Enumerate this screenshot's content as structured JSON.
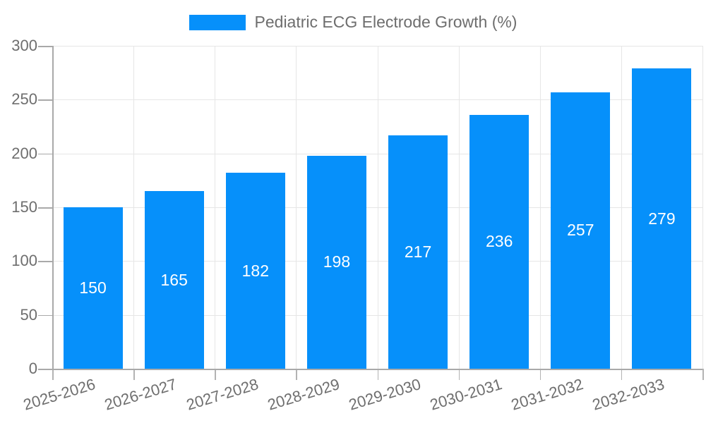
{
  "legend": {
    "label": "Pediatric ECG Electrode Growth (%)",
    "position": "top"
  },
  "chart_data": {
    "type": "bar",
    "title": "Pediatric ECG Electrode Growth (%)",
    "categories": [
      "2025-2026",
      "2026-2027",
      "2027-2028",
      "2028-2029",
      "2029-2030",
      "2030-2031",
      "2031-2032",
      "2032-2033"
    ],
    "values": [
      150,
      165,
      182,
      198,
      217,
      236,
      257,
      279
    ],
    "xlabel": "",
    "ylabel": "",
    "ylim": [
      0,
      300
    ],
    "yticks": [
      0,
      50,
      100,
      150,
      200,
      250,
      300
    ],
    "grid": true,
    "legend_position": "top",
    "value_labels": "inside-center",
    "x_label_rotation_deg": -17,
    "colors": {
      "bar": "#0690FA",
      "gridline": "#E6E6E6",
      "axis": "#A9A9A9",
      "tick": "#B3B3B3",
      "text": "#6E6E6E",
      "value_text": "#FFFFFF",
      "background": "#FFFFFF"
    }
  }
}
